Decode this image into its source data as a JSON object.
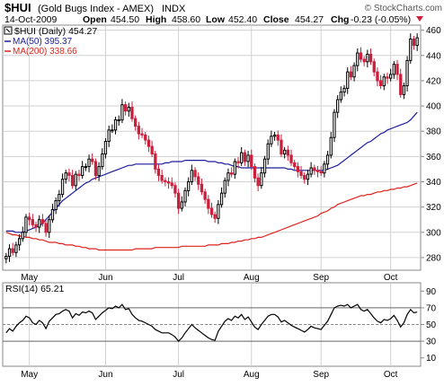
{
  "header": {
    "symbol": "$HUI",
    "name": "(Gold Bugs Index - AMEX)",
    "exchange": "INDX",
    "watermark": "© StockCharts.com",
    "date": "14-Oct-2009",
    "quote": {
      "open_label": "Open",
      "open": "454.50",
      "high_label": "High",
      "high": "458.60",
      "low_label": "Low",
      "low": "452.40",
      "close_label": "Close",
      "close": "454.27",
      "chg_label": "Chg",
      "chg": "-0.23 (-0.05%)"
    }
  },
  "legend": {
    "price": "$HUI (Daily) 454.27",
    "ma50": "MA(50) 395.37",
    "ma200": "MA(200) 338.66"
  },
  "colors": {
    "up": "#000000",
    "down": "#cc1f3c",
    "ma50": "#1c1c9e",
    "ma200": "#e0221c",
    "rsi": "#000000",
    "grid": "#d0d0d0"
  },
  "chart_data": [
    {
      "type": "candlestick",
      "title": "$HUI (Daily) 454.27",
      "x_labels": [
        "May",
        "Jun",
        "Jul",
        "Aug",
        "Sep",
        "Oct"
      ],
      "y_ticks": [
        280,
        300,
        320,
        340,
        360,
        380,
        400,
        420,
        440,
        460
      ],
      "ylim": [
        270,
        464
      ],
      "grid": true,
      "series": [
        {
          "name": "$HUI (Daily) 454.27",
          "values": [
            281,
            287,
            284,
            290,
            295,
            300,
            312,
            310,
            306,
            304,
            310,
            307,
            300,
            310,
            318,
            325,
            330,
            342,
            347,
            345,
            337,
            346,
            345,
            352,
            352,
            358,
            356,
            345,
            352,
            362,
            372,
            381,
            381,
            389,
            389,
            401,
            396,
            399,
            390,
            384,
            378,
            377,
            373,
            368,
            362,
            350,
            345,
            341,
            340,
            339,
            337,
            331,
            319,
            324,
            333,
            340,
            349,
            344,
            338,
            332,
            326,
            319,
            314,
            311,
            322,
            331,
            341,
            347,
            346,
            356,
            355,
            363,
            356,
            361,
            352,
            343,
            337,
            347,
            358,
            370,
            376,
            377,
            373,
            362,
            365,
            361,
            355,
            352,
            348,
            345,
            342,
            346,
            351,
            349,
            348,
            347,
            354,
            361,
            375,
            395,
            405,
            411,
            414,
            427,
            423,
            432,
            442,
            437,
            435,
            441,
            435,
            427,
            420,
            416,
            423,
            422,
            425,
            433,
            425,
            409,
            416,
            436,
            453,
            448,
            454
          ]
        },
        {
          "name": "MA(50) 395.37",
          "values": [
            301,
            301,
            301,
            300,
            300,
            300,
            301,
            302,
            303,
            304,
            305,
            307,
            310,
            313,
            316,
            319,
            322,
            325,
            327,
            329,
            331,
            333,
            335,
            337,
            339,
            340,
            342,
            343,
            344,
            345,
            346,
            347,
            348,
            349,
            350,
            351,
            352,
            353,
            353,
            354,
            354,
            354,
            354,
            354,
            354,
            354,
            354,
            354,
            355,
            355,
            356,
            356,
            356,
            356,
            357,
            357,
            357,
            357,
            357,
            357,
            357,
            356,
            356,
            356,
            355,
            355,
            354,
            354,
            353,
            352,
            352,
            351,
            351,
            351,
            351,
            351,
            351,
            351,
            351,
            351,
            351,
            351,
            351,
            351,
            351,
            350,
            350,
            349,
            349,
            349,
            349,
            349,
            349,
            349,
            349,
            349,
            349,
            350,
            351,
            352,
            353,
            355,
            357,
            359,
            361,
            363,
            365,
            367,
            369,
            371,
            372,
            374,
            376,
            378,
            379,
            381,
            382,
            383,
            384,
            385,
            386,
            387,
            389,
            392,
            395
          ]
        },
        {
          "name": "MA(200) 338.66",
          "values": [
            300,
            299,
            298,
            298,
            297,
            297,
            296,
            296,
            295,
            295,
            294,
            294,
            293,
            292,
            292,
            292,
            291,
            291,
            290,
            290,
            290,
            289,
            289,
            288,
            288,
            287,
            287,
            287,
            286,
            286,
            286,
            286,
            286,
            286,
            286,
            286,
            286,
            286,
            286,
            287,
            287,
            287,
            287,
            287,
            287,
            288,
            288,
            288,
            288,
            288,
            288,
            288,
            288,
            289,
            289,
            289,
            289,
            289,
            289,
            289,
            289,
            290,
            290,
            290,
            290,
            291,
            291,
            291,
            292,
            292,
            293,
            293,
            294,
            294,
            295,
            295,
            296,
            296,
            297,
            298,
            299,
            300,
            301,
            302,
            303,
            304,
            305,
            306,
            307,
            308,
            309,
            310,
            311,
            312,
            313,
            315,
            316,
            317,
            319,
            320,
            322,
            323,
            324,
            325,
            326,
            327,
            328,
            329,
            329,
            330,
            330,
            331,
            332,
            332,
            333,
            333,
            334,
            334,
            335,
            335,
            336,
            336,
            337,
            338,
            339
          ]
        }
      ]
    },
    {
      "type": "line",
      "title": "RSI(14) 65.21",
      "x_labels": [
        "May",
        "Jun",
        "Jul",
        "Aug",
        "Sep",
        "Oct"
      ],
      "y_ticks": [
        10,
        30,
        50,
        70,
        90
      ],
      "ylim": [
        0,
        100
      ],
      "reference_lines": [
        30,
        50,
        70
      ],
      "series": [
        {
          "name": "RSI(14) 65.21",
          "values": [
            40,
            45,
            42,
            48,
            52,
            55,
            60,
            58,
            52,
            50,
            55,
            52,
            45,
            54,
            58,
            62,
            63,
            66,
            68,
            66,
            58,
            63,
            61,
            65,
            64,
            66,
            64,
            56,
            60,
            64,
            67,
            70,
            69,
            72,
            70,
            74,
            68,
            69,
            62,
            58,
            55,
            54,
            52,
            50,
            48,
            44,
            42,
            40,
            40,
            40,
            38,
            35,
            30,
            34,
            40,
            45,
            50,
            46,
            43,
            40,
            37,
            34,
            32,
            31,
            42,
            48,
            54,
            57,
            55,
            60,
            58,
            62,
            56,
            59,
            53,
            47,
            44,
            50,
            55,
            60,
            62,
            62,
            59,
            53,
            55,
            52,
            49,
            47,
            45,
            43,
            41,
            44,
            48,
            46,
            45,
            44,
            49,
            54,
            62,
            70,
            72,
            73,
            72,
            74,
            70,
            72,
            74,
            68,
            66,
            68,
            63,
            58,
            54,
            52,
            56,
            55,
            57,
            61,
            55,
            47,
            52,
            62,
            68,
            64,
            65
          ]
        }
      ]
    }
  ]
}
